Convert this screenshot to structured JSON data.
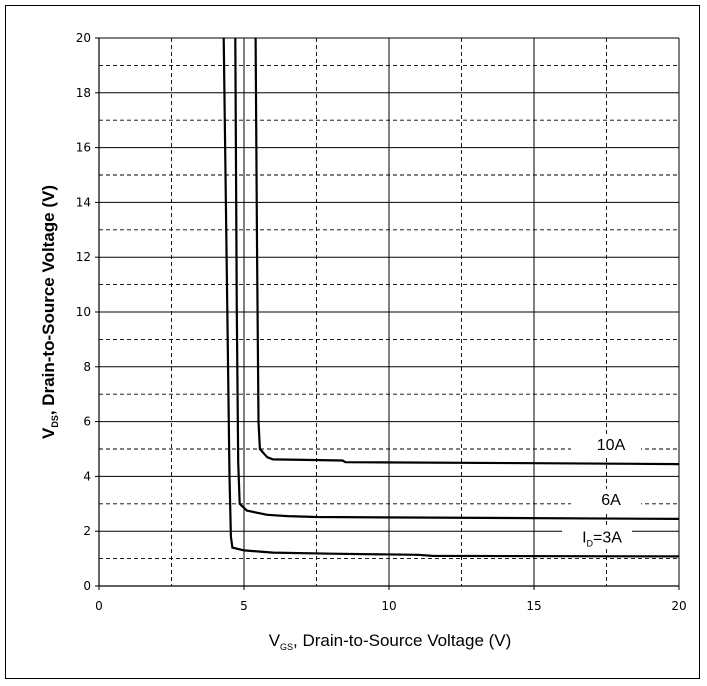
{
  "chart_data": {
    "type": "line",
    "xlabel": {
      "main": "V",
      "sub": "GS",
      "rest": ", Drain-to-Source Voltage (V)"
    },
    "ylabel": {
      "main": "V",
      "sub": "DS",
      "rest": ", Drain-to-Source Voltage (V)"
    },
    "xlim": [
      0,
      20
    ],
    "ylim": [
      0,
      20
    ],
    "x_ticks": [
      "0",
      "5",
      "10",
      "15",
      "20"
    ],
    "y_ticks": [
      "0",
      "2",
      "4",
      "6",
      "8",
      "10",
      "12",
      "14",
      "16",
      "18",
      "20"
    ],
    "grid": true,
    "series": [
      {
        "label": {
          "main": "I",
          "sub": "D",
          "rest": "=3A"
        },
        "points": [
          [
            4.3,
            20
          ],
          [
            4.4,
            12
          ],
          [
            4.5,
            4
          ],
          [
            4.55,
            1.8
          ],
          [
            4.6,
            1.4
          ],
          [
            5,
            1.3
          ],
          [
            6,
            1.22
          ],
          [
            8,
            1.18
          ],
          [
            11,
            1.14
          ],
          [
            11.5,
            1.1
          ],
          [
            20,
            1.08
          ]
        ]
      },
      {
        "label": {
          "main": "",
          "sub": "",
          "rest": "6A"
        },
        "points": [
          [
            4.7,
            20
          ],
          [
            4.75,
            10
          ],
          [
            4.8,
            4.5
          ],
          [
            4.85,
            3
          ],
          [
            5.1,
            2.75
          ],
          [
            5.8,
            2.6
          ],
          [
            6.5,
            2.55
          ],
          [
            7.5,
            2.52
          ],
          [
            20,
            2.45
          ]
        ]
      },
      {
        "label": {
          "main": "",
          "sub": "",
          "rest": "10A"
        },
        "points": [
          [
            5.4,
            20
          ],
          [
            5.45,
            12
          ],
          [
            5.5,
            6
          ],
          [
            5.55,
            5
          ],
          [
            5.8,
            4.7
          ],
          [
            6,
            4.62
          ],
          [
            8.4,
            4.58
          ],
          [
            8.5,
            4.52
          ],
          [
            15,
            4.48
          ],
          [
            20,
            4.45
          ]
        ]
      }
    ]
  }
}
